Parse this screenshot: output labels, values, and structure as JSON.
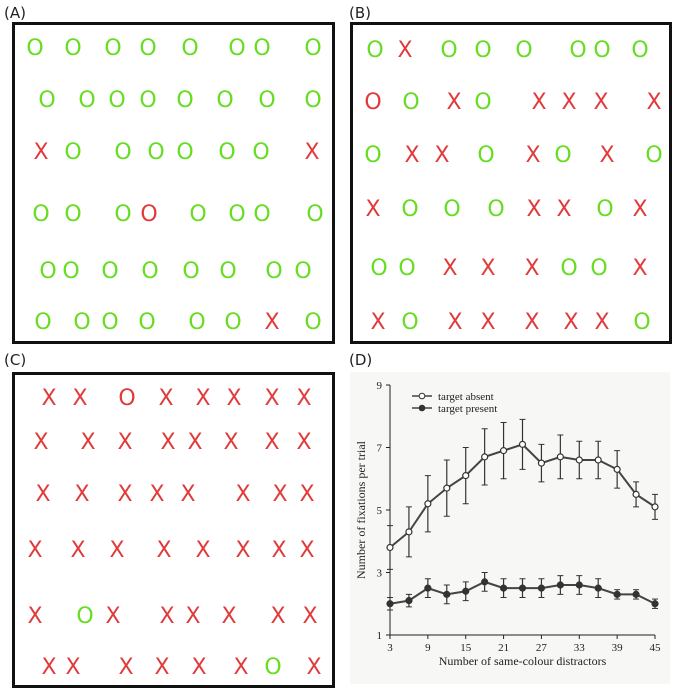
{
  "panels": [
    {
      "label": "(A)"
    },
    {
      "label": "(B)"
    },
    {
      "label": "(C)"
    },
    {
      "label": "(D)"
    }
  ],
  "colors": {
    "green": "#66dd22",
    "red": "#e03a3a",
    "frame": "#111111"
  },
  "stimuli": {
    "A": [
      {
        "c": "O",
        "col": "green"
      },
      {
        "c": "O",
        "col": "green"
      },
      {
        "c": "O",
        "col": "green"
      },
      {
        "c": "O",
        "col": "green"
      },
      {
        "c": "O",
        "col": "green"
      },
      {
        "c": "O",
        "col": "green"
      },
      {
        "c": "O",
        "col": "green"
      },
      {
        "c": "O",
        "col": "green"
      },
      {
        "c": "O",
        "col": "green"
      },
      {
        "c": "O",
        "col": "green"
      },
      {
        "c": "O",
        "col": "green"
      },
      {
        "c": "O",
        "col": "green"
      },
      {
        "c": "O",
        "col": "green"
      },
      {
        "c": "O",
        "col": "green"
      },
      {
        "c": "O",
        "col": "green"
      },
      {
        "c": "O",
        "col": "green"
      },
      {
        "c": "X",
        "col": "red"
      },
      {
        "c": "O",
        "col": "green"
      },
      {
        "c": "O",
        "col": "green"
      },
      {
        "c": "O",
        "col": "green"
      },
      {
        "c": "O",
        "col": "green"
      },
      {
        "c": "O",
        "col": "green"
      },
      {
        "c": "O",
        "col": "green"
      },
      {
        "c": "X",
        "col": "red"
      },
      {
        "c": "O",
        "col": "green"
      },
      {
        "c": "O",
        "col": "green"
      },
      {
        "c": "O",
        "col": "green"
      },
      {
        "c": "O",
        "col": "red"
      },
      {
        "c": "O",
        "col": "green"
      },
      {
        "c": "O",
        "col": "green"
      },
      {
        "c": "O",
        "col": "green"
      },
      {
        "c": "O",
        "col": "green"
      },
      {
        "c": "O",
        "col": "green"
      },
      {
        "c": "O",
        "col": "green"
      },
      {
        "c": "O",
        "col": "green"
      },
      {
        "c": "O",
        "col": "green"
      },
      {
        "c": "O",
        "col": "green"
      },
      {
        "c": "O",
        "col": "green"
      },
      {
        "c": "O",
        "col": "green"
      },
      {
        "c": "O",
        "col": "green"
      },
      {
        "c": "O",
        "col": "green"
      },
      {
        "c": "O",
        "col": "green"
      },
      {
        "c": "O",
        "col": "green"
      },
      {
        "c": "O",
        "col": "green"
      },
      {
        "c": "O",
        "col": "green"
      },
      {
        "c": "O",
        "col": "green"
      },
      {
        "c": "X",
        "col": "red"
      },
      {
        "c": "O",
        "col": "green"
      }
    ],
    "B": [
      {
        "c": "O",
        "col": "green"
      },
      {
        "c": "X",
        "col": "red"
      },
      {
        "c": "O",
        "col": "green"
      },
      {
        "c": "O",
        "col": "green"
      },
      {
        "c": "O",
        "col": "green"
      },
      {
        "c": "O",
        "col": "green"
      },
      {
        "c": "O",
        "col": "green"
      },
      {
        "c": "O",
        "col": "green"
      },
      {
        "c": "O",
        "col": "red"
      },
      {
        "c": "O",
        "col": "green"
      },
      {
        "c": "X",
        "col": "red"
      },
      {
        "c": "O",
        "col": "green"
      },
      {
        "c": "X",
        "col": "red"
      },
      {
        "c": "X",
        "col": "red"
      },
      {
        "c": "X",
        "col": "red"
      },
      {
        "c": "X",
        "col": "red"
      },
      {
        "c": "O",
        "col": "green"
      },
      {
        "c": "X",
        "col": "red"
      },
      {
        "c": "X",
        "col": "red"
      },
      {
        "c": "O",
        "col": "green"
      },
      {
        "c": "X",
        "col": "red"
      },
      {
        "c": "O",
        "col": "green"
      },
      {
        "c": "X",
        "col": "red"
      },
      {
        "c": "O",
        "col": "green"
      },
      {
        "c": "X",
        "col": "red"
      },
      {
        "c": "O",
        "col": "green"
      },
      {
        "c": "O",
        "col": "green"
      },
      {
        "c": "O",
        "col": "green"
      },
      {
        "c": "X",
        "col": "red"
      },
      {
        "c": "X",
        "col": "red"
      },
      {
        "c": "O",
        "col": "green"
      },
      {
        "c": "X",
        "col": "red"
      },
      {
        "c": "O",
        "col": "green"
      },
      {
        "c": "O",
        "col": "green"
      },
      {
        "c": "X",
        "col": "red"
      },
      {
        "c": "X",
        "col": "red"
      },
      {
        "c": "X",
        "col": "red"
      },
      {
        "c": "O",
        "col": "green"
      },
      {
        "c": "O",
        "col": "green"
      },
      {
        "c": "X",
        "col": "red"
      },
      {
        "c": "X",
        "col": "red"
      },
      {
        "c": "O",
        "col": "green"
      },
      {
        "c": "X",
        "col": "red"
      },
      {
        "c": "X",
        "col": "red"
      },
      {
        "c": "X",
        "col": "red"
      },
      {
        "c": "X",
        "col": "red"
      },
      {
        "c": "X",
        "col": "red"
      },
      {
        "c": "O",
        "col": "green"
      }
    ],
    "C": [
      {
        "c": "X",
        "col": "red"
      },
      {
        "c": "X",
        "col": "red"
      },
      {
        "c": "O",
        "col": "red"
      },
      {
        "c": "X",
        "col": "red"
      },
      {
        "c": "X",
        "col": "red"
      },
      {
        "c": "X",
        "col": "red"
      },
      {
        "c": "X",
        "col": "red"
      },
      {
        "c": "X",
        "col": "red"
      },
      {
        "c": "X",
        "col": "red"
      },
      {
        "c": "X",
        "col": "red"
      },
      {
        "c": "X",
        "col": "red"
      },
      {
        "c": "X",
        "col": "red"
      },
      {
        "c": "X",
        "col": "red"
      },
      {
        "c": "X",
        "col": "red"
      },
      {
        "c": "X",
        "col": "red"
      },
      {
        "c": "X",
        "col": "red"
      },
      {
        "c": "X",
        "col": "red"
      },
      {
        "c": "X",
        "col": "red"
      },
      {
        "c": "X",
        "col": "red"
      },
      {
        "c": "X",
        "col": "red"
      },
      {
        "c": "X",
        "col": "red"
      },
      {
        "c": "X",
        "col": "red"
      },
      {
        "c": "X",
        "col": "red"
      },
      {
        "c": "X",
        "col": "red"
      },
      {
        "c": "X",
        "col": "red"
      },
      {
        "c": "X",
        "col": "red"
      },
      {
        "c": "X",
        "col": "red"
      },
      {
        "c": "X",
        "col": "red"
      },
      {
        "c": "X",
        "col": "red"
      },
      {
        "c": "X",
        "col": "red"
      },
      {
        "c": "X",
        "col": "red"
      },
      {
        "c": "X",
        "col": "red"
      },
      {
        "c": "X",
        "col": "red"
      },
      {
        "c": "O",
        "col": "green"
      },
      {
        "c": "X",
        "col": "red"
      },
      {
        "c": "X",
        "col": "red"
      },
      {
        "c": "X",
        "col": "red"
      },
      {
        "c": "X",
        "col": "red"
      },
      {
        "c": "X",
        "col": "red"
      },
      {
        "c": "X",
        "col": "red"
      },
      {
        "c": "X",
        "col": "red"
      },
      {
        "c": "X",
        "col": "red"
      },
      {
        "c": "X",
        "col": "red"
      },
      {
        "c": "X",
        "col": "red"
      },
      {
        "c": "X",
        "col": "red"
      },
      {
        "c": "X",
        "col": "red"
      },
      {
        "c": "O",
        "col": "green"
      },
      {
        "c": "X",
        "col": "red"
      }
    ]
  },
  "chart_data": {
    "type": "line",
    "xlabel": "Number of same-colour distractors",
    "ylabel": "Number of fixations per trial",
    "xticks": [
      3,
      9,
      15,
      21,
      27,
      33,
      39,
      45
    ],
    "yticks": [
      1,
      3,
      5,
      7,
      9
    ],
    "xlim": [
      3,
      45
    ],
    "ylim": [
      1,
      9
    ],
    "x": [
      3,
      6,
      9,
      12,
      15,
      18,
      21,
      24,
      27,
      30,
      33,
      36,
      39,
      42,
      45
    ],
    "series": [
      {
        "name": "target absent",
        "marker": "open-circle",
        "values": [
          3.8,
          4.3,
          5.2,
          5.7,
          6.1,
          6.7,
          6.9,
          7.1,
          6.5,
          6.7,
          6.6,
          6.6,
          6.3,
          5.5,
          5.1
        ],
        "errors": [
          0.7,
          0.8,
          0.9,
          0.9,
          0.9,
          0.9,
          0.9,
          0.8,
          0.6,
          0.7,
          0.6,
          0.6,
          0.6,
          0.4,
          0.4
        ]
      },
      {
        "name": "target present",
        "marker": "filled-circle",
        "values": [
          2.0,
          2.1,
          2.5,
          2.3,
          2.4,
          2.7,
          2.5,
          2.5,
          2.5,
          2.6,
          2.6,
          2.5,
          2.3,
          2.3,
          2.0
        ],
        "errors": [
          0.2,
          0.2,
          0.3,
          0.3,
          0.3,
          0.3,
          0.3,
          0.3,
          0.3,
          0.3,
          0.3,
          0.3,
          0.15,
          0.15,
          0.15
        ]
      }
    ],
    "legend_position": "top-left"
  }
}
